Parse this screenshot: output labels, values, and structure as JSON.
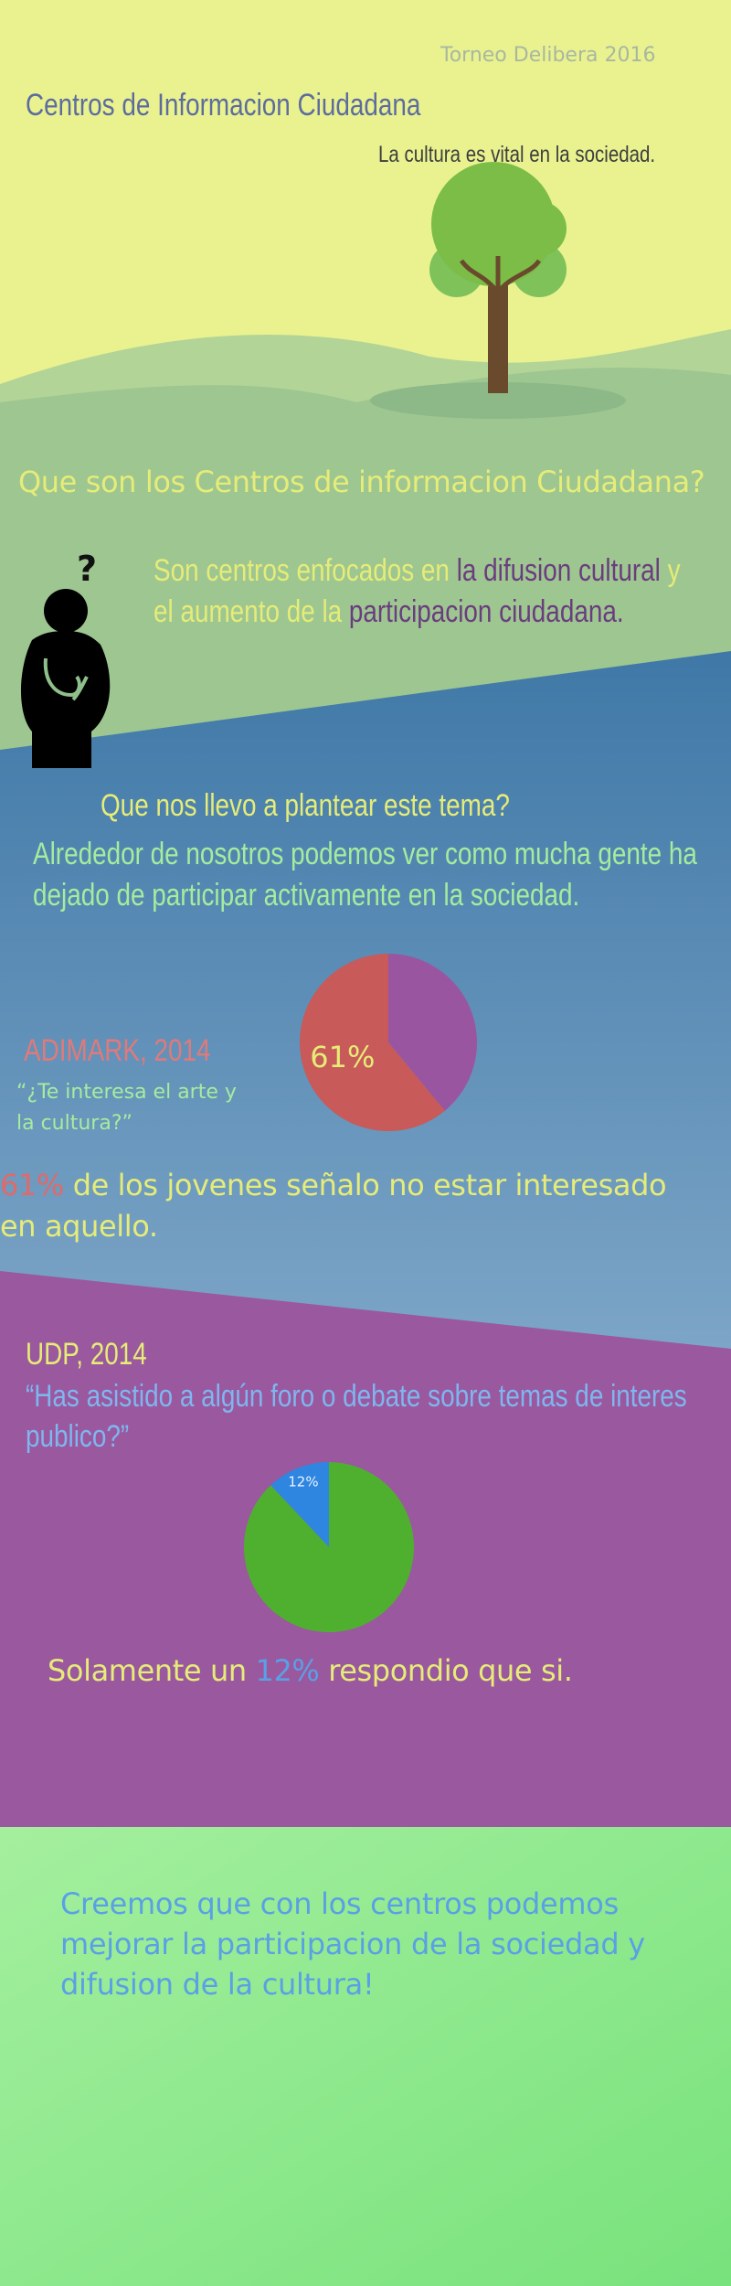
{
  "header": {
    "event": "Torneo Delibera 2016",
    "title": "Centros de Informacion Ciudadana",
    "tagline": "La cultura es vital en la sociedad."
  },
  "section_what": {
    "question": "Que son los Centros de informacion Ciudadana?",
    "answer_parts": [
      "Son centros enfocados en ",
      "la difusion cultural",
      " y",
      "el aumento de la ",
      "participacion ciudadana",
      "."
    ],
    "question_mark": "?"
  },
  "section_why": {
    "heading": "Que nos llevo a plantear este tema?",
    "body_line1": "Alrededor de nosotros podemos ver como mucha gente ha",
    "body_line2": "dejado de participar activamente en la sociedad."
  },
  "survey_adimark": {
    "source": "ADIMARK, 2014",
    "question_line1": "“¿Te interesa el arte y",
    "question_line2": "la cultura?”",
    "pie_label": "61%",
    "result_highlight": "61%",
    "result_rest_line1": " de los jovenes señalo no estar interesado",
    "result_line2": "en aquello."
  },
  "survey_udp": {
    "source": "UDP, 2014",
    "question_line1": "“Has asistido a algún foro o debate sobre temas de interes",
    "question_line2": "publico?”",
    "pie_label": "12%",
    "result_pre": "Solamente un ",
    "result_highlight": "12%",
    "result_post": " respondio que si."
  },
  "closing": {
    "line1": "Creemos que con los centros podemos",
    "line2": "mejorar la participacion de la sociedad y",
    "line3": "difusion de la cultura!"
  },
  "chart_data": [
    {
      "type": "pie",
      "title": "",
      "slices": [
        {
          "label": "61%",
          "value": 61,
          "color": "#c85a5a"
        },
        {
          "label": "",
          "value": 39,
          "color": "#9a55a0"
        }
      ]
    },
    {
      "type": "pie",
      "title": "",
      "slices": [
        {
          "label": "12%",
          "value": 12,
          "color": "#2f86e0"
        },
        {
          "label": "",
          "value": 88,
          "color": "#4fb030"
        }
      ]
    }
  ],
  "colors": {
    "yellow_bg": "#e9f28f",
    "green_band": "#9cc58f",
    "blue_band": "#4a80ad",
    "light_blue": "#92b6d3",
    "purple_band": "#9a589e",
    "closing_green": "#8aea88",
    "accent_yellow": "#e6ec78",
    "accent_purple": "#6a3d7e",
    "accent_red": "#e06a6a",
    "accent_blue": "#5aa0e6"
  }
}
